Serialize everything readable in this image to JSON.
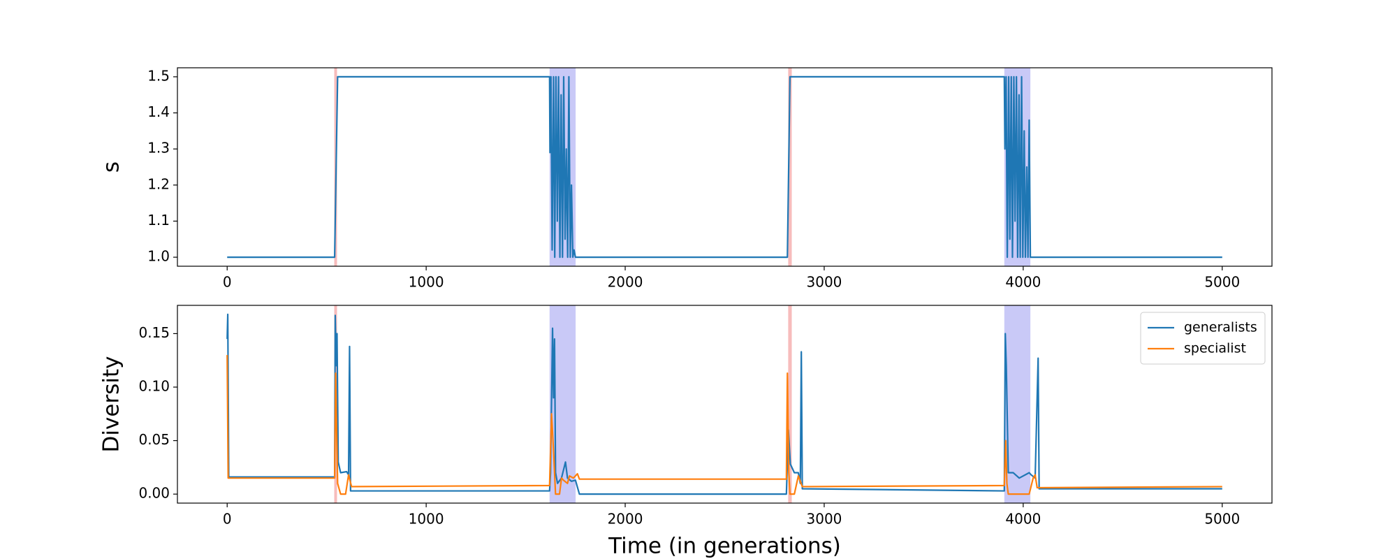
{
  "chart_data": [
    {
      "type": "line",
      "ylabel": "s",
      "xlim": [
        -250,
        5250
      ],
      "ylim": [
        0.975,
        1.525
      ],
      "xticks": [
        0,
        1000,
        2000,
        3000,
        4000,
        5000
      ],
      "yticks": [
        {
          "value": 1.0,
          "label": "1.0"
        },
        1.1,
        1.2,
        1.3,
        1.4,
        1.5
      ],
      "spans": [
        {
          "x": [
            538,
            552
          ],
          "color": "#f7bcbc"
        },
        {
          "x": [
            1620,
            1751
          ],
          "color": "#c9c9f7"
        },
        {
          "x": [
            2819,
            2837
          ],
          "color": "#f7bcbc"
        },
        {
          "x": [
            3905,
            4036
          ],
          "color": "#c9c9f7"
        }
      ],
      "series": [
        {
          "color": "#1f77b4",
          "x": [
            0,
            540,
            555,
            1620,
            1622,
            1627,
            1633,
            1640,
            1646,
            1652,
            1659,
            1665,
            1672,
            1678,
            1685,
            1691,
            1698,
            1704,
            1711,
            1717,
            1724,
            1730,
            1737,
            1743,
            1750,
            2815,
            2828,
            3905,
            3908,
            3914,
            3920,
            3927,
            3933,
            3940,
            3946,
            3953,
            3959,
            3966,
            3972,
            3979,
            3985,
            3992,
            3998,
            4005,
            4011,
            4018,
            4024,
            4030,
            4036,
            5000
          ],
          "values": [
            1.0,
            1.0,
            1.5,
            1.5,
            1.29,
            1.5,
            1.02,
            1.5,
            1.0,
            1.5,
            1.1,
            1.5,
            1.0,
            1.45,
            1.0,
            1.5,
            1.05,
            1.3,
            1.0,
            1.5,
            1.0,
            1.2,
            1.0,
            1.02,
            1.0,
            1.0,
            1.5,
            1.5,
            1.3,
            1.5,
            1.0,
            1.5,
            1.05,
            1.5,
            1.0,
            1.5,
            1.1,
            1.5,
            1.0,
            1.45,
            1.0,
            1.5,
            1.0,
            1.35,
            1.0,
            1.25,
            1.0,
            1.38,
            1.0,
            1.0
          ]
        }
      ]
    },
    {
      "type": "line",
      "ylabel": "Diversity",
      "xlabel": "Time (in generations)",
      "xlim": [
        -250,
        5250
      ],
      "ylim": [
        -0.0084,
        0.1764
      ],
      "xticks": [
        0,
        1000,
        2000,
        3000,
        4000,
        5000
      ],
      "yticks": [
        {
          "value": 0,
          "label": "0.00"
        },
        {
          "value": 0.05,
          "label": "0.05"
        },
        {
          "value": 0.1,
          "label": "0.10"
        },
        {
          "value": 0.15,
          "label": "0.15"
        }
      ],
      "legend": "upper right",
      "spans": [
        {
          "x": [
            538,
            552
          ],
          "color": "#f7bcbc"
        },
        {
          "x": [
            1620,
            1751
          ],
          "color": "#c9c9f7"
        },
        {
          "x": [
            2819,
            2837
          ],
          "color": "#f7bcbc"
        },
        {
          "x": [
            3905,
            4036
          ],
          "color": "#c9c9f7"
        }
      ],
      "series": [
        {
          "name": "generalists",
          "color": "#1f77b4",
          "x": [
            0,
            3,
            8,
            540,
            543,
            548,
            552,
            558,
            570,
            600,
            610,
            615,
            620,
            1620,
            1625,
            1635,
            1640,
            1645,
            1650,
            1660,
            1680,
            1700,
            1710,
            1730,
            1750,
            1770,
            2810,
            2820,
            2830,
            2850,
            2870,
            2880,
            2885,
            2890,
            3905,
            3910,
            3915,
            3925,
            3950,
            3980,
            4030,
            4040,
            4060,
            4075,
            4080,
            5000
          ],
          "values": [
            0.145,
            0.168,
            0.016,
            0.016,
            0.167,
            0.12,
            0.15,
            0.03,
            0.02,
            0.021,
            0.018,
            0.138,
            0.003,
            0.003,
            0.02,
            0.155,
            0.09,
            0.145,
            0.02,
            0.01,
            0.015,
            0.03,
            0.015,
            0.012,
            0.013,
            0.0,
            0.0,
            0.06,
            0.028,
            0.02,
            0.02,
            0.01,
            0.133,
            0.005,
            0.003,
            0.15,
            0.12,
            0.02,
            0.02,
            0.015,
            0.02,
            0.018,
            0.015,
            0.127,
            0.005,
            0.005
          ]
        },
        {
          "name": "specialist",
          "color": "#ff7f0e",
          "x": [
            0,
            5,
            540,
            545,
            555,
            570,
            595,
            610,
            625,
            1620,
            1630,
            1640,
            1650,
            1670,
            1680,
            1690,
            1710,
            1720,
            1740,
            1760,
            1770,
            2810,
            2815,
            2822,
            2828,
            2850,
            2870,
            2890,
            3905,
            3912,
            3918,
            3925,
            3950,
            4030,
            4050,
            4060,
            4070,
            5000
          ],
          "values": [
            0.13,
            0.015,
            0.015,
            0.113,
            0.01,
            0.0,
            0.0,
            0.018,
            0.007,
            0.008,
            0.075,
            0.04,
            0.0,
            0.0,
            0.015,
            0.013,
            0.01,
            0.017,
            0.015,
            0.019,
            0.014,
            0.014,
            0.113,
            0.02,
            0.0,
            0.0,
            0.017,
            0.007,
            0.008,
            0.05,
            0.01,
            0.0,
            0.0,
            0.0,
            0.015,
            0.018,
            0.006,
            0.007
          ]
        }
      ]
    }
  ]
}
